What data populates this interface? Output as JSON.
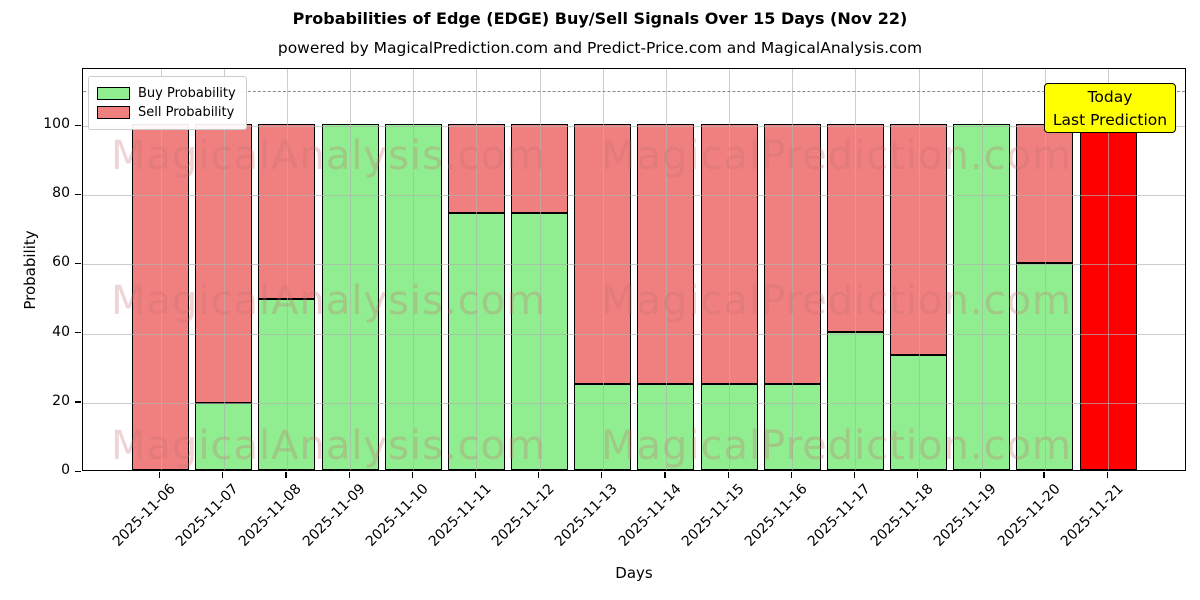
{
  "title": "Probabilities of Edge (EDGE) Buy/Sell Signals Over 15 Days (Nov 22)",
  "subtitle": "powered by MagicalPrediction.com and Predict-Price.com and MagicalAnalysis.com",
  "legend": {
    "buy_label": "Buy Probability",
    "sell_label": "Sell Probability"
  },
  "annotation_box": {
    "line1": "Today",
    "line2": "Last Prediction",
    "bg_color": "#ffff00"
  },
  "watermarks": {
    "left_text": "MagicalAnalysis.com",
    "right_text": "MagicalPrediction.com"
  },
  "colors": {
    "buy": "#90ee90",
    "sell": "#f08080",
    "today_bar": "#ff0000",
    "bar_edge": "#000000",
    "grid": "#b2b2b2",
    "dashed_line": "#8a8a8a"
  },
  "chart_data": {
    "type": "bar",
    "stacked": true,
    "title": "Probabilities of Edge (EDGE) Buy/Sell Signals Over 15 Days (Nov 22)",
    "xlabel": "Days",
    "ylabel": "Probability",
    "categories": [
      "2025-11-06",
      "2025-11-07",
      "2025-11-08",
      "2025-11-09",
      "2025-11-10",
      "2025-11-11",
      "2025-11-12",
      "2025-11-13",
      "2025-11-14",
      "2025-11-15",
      "2025-11-16",
      "2025-11-17",
      "2025-11-18",
      "2025-11-19",
      "2025-11-20",
      "2025-11-21"
    ],
    "series": [
      {
        "name": "Buy Probability",
        "color": "#90ee90",
        "values": [
          0,
          19.4,
          49.3,
          100,
          100,
          74.3,
          74.3,
          25,
          25,
          25,
          25,
          40,
          33.3,
          100,
          59.7,
          0
        ]
      },
      {
        "name": "Sell Probability",
        "color": "#f08080",
        "values": [
          100,
          80.6,
          50.7,
          0,
          0,
          25.7,
          25.7,
          75,
          75,
          75,
          75,
          60,
          66.7,
          0,
          40.3,
          100
        ]
      }
    ],
    "today_bar": {
      "index": 15,
      "color": "#ff0000",
      "value": 100
    },
    "dashed_line_y": 110,
    "yticks": [
      0,
      20,
      40,
      60,
      80,
      100
    ],
    "ylim": [
      0,
      116.5
    ],
    "grid": true,
    "legend_position": "upper left"
  }
}
